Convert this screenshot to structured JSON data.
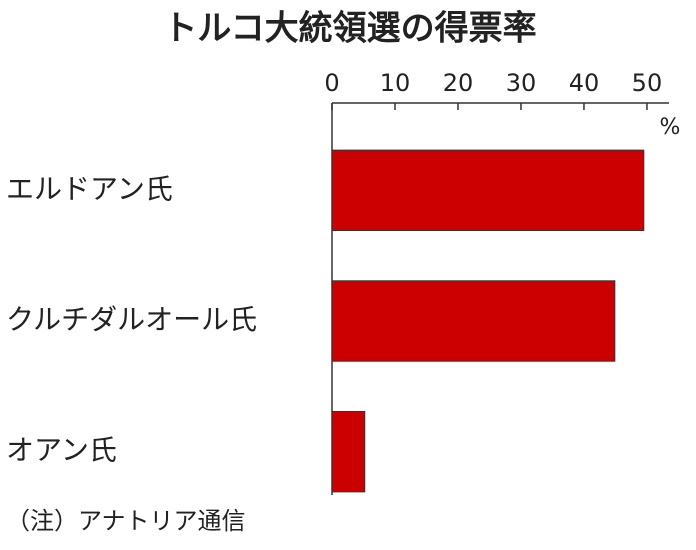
{
  "chart_data": {
    "type": "bar",
    "orientation": "horizontal",
    "title": "トルコ大統領選の得票率",
    "categories": [
      "エルドアン氏",
      "クルチダルオール氏",
      "オアン氏"
    ],
    "values": [
      49.5,
      44.9,
      5.2
    ],
    "color": "#cc0000",
    "xlim": [
      0,
      53.5
    ],
    "xticks": [
      0,
      10,
      20,
      30,
      40,
      50
    ],
    "x_unit": "%",
    "note": "（注）アナトリア通信"
  }
}
